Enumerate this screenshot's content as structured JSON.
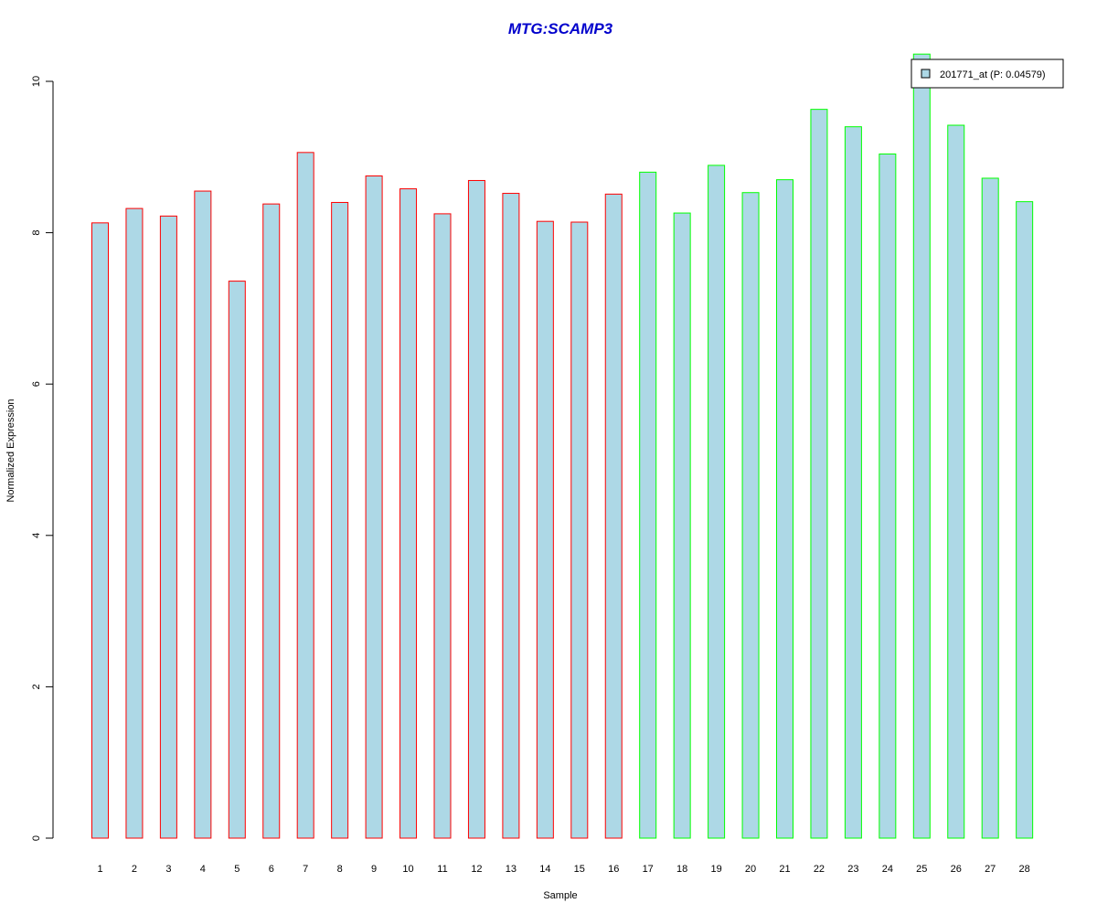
{
  "chart_data": {
    "type": "bar",
    "title": "MTG:SCAMP3",
    "title_color": "#0000CC",
    "xlabel": "Sample",
    "ylabel": "Normalized Expression",
    "ylim": [
      0,
      10
    ],
    "yticks": [
      0,
      2,
      4,
      6,
      8,
      10
    ],
    "categories": [
      "1",
      "2",
      "3",
      "4",
      "5",
      "6",
      "7",
      "8",
      "9",
      "10",
      "11",
      "12",
      "13",
      "14",
      "15",
      "16",
      "17",
      "18",
      "19",
      "20",
      "21",
      "22",
      "23",
      "24",
      "25",
      "26",
      "27",
      "28"
    ],
    "series": [
      {
        "name": "201771_at (P: 0.04579)",
        "fill": "#ADD8E6",
        "values": [
          8.13,
          8.32,
          8.22,
          8.55,
          7.36,
          8.38,
          9.06,
          8.4,
          8.75,
          8.58,
          8.25,
          8.69,
          8.52,
          8.15,
          8.14,
          8.51,
          8.8,
          8.26,
          8.89,
          8.53,
          8.7,
          9.63,
          9.4,
          9.04,
          10.36,
          9.42,
          8.72,
          8.41
        ]
      }
    ],
    "groups": [
      {
        "from": 1,
        "to": 16,
        "border": "#FF0000"
      },
      {
        "from": 17,
        "to": 28,
        "border": "#00FF00"
      }
    ],
    "legend": {
      "placement": "top-right",
      "label": "201771_at (P: 0.04579)"
    },
    "grid": false
  }
}
